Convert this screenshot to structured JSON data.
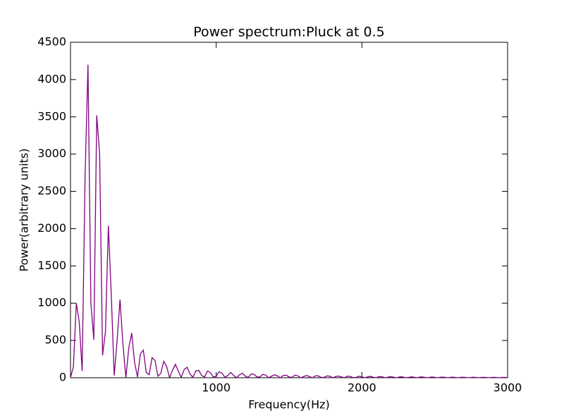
{
  "chart_data": {
    "type": "line",
    "title": "Power spectrum:Pluck at 0.5",
    "x_label": "Frequency(Hz)",
    "y_label": "Power(arbitrary units)",
    "x": [
      0,
      20,
      40,
      60,
      80,
      100,
      120,
      140,
      160,
      180,
      200,
      220,
      240,
      260,
      280,
      300,
      320,
      340,
      360,
      380,
      400,
      420,
      440,
      460,
      480,
      500,
      520,
      540,
      560,
      580,
      600,
      620,
      640,
      660,
      680,
      700,
      720,
      740,
      760,
      780,
      800,
      820,
      840,
      860,
      880,
      900,
      920,
      940,
      960,
      980,
      1000,
      1020,
      1040,
      1060,
      1080,
      1100,
      1120,
      1140,
      1160,
      1180,
      1200,
      1220,
      1240,
      1260,
      1280,
      1300,
      1320,
      1340,
      1360,
      1380,
      1400,
      1420,
      1440,
      1460,
      1480,
      1500,
      1520,
      1540,
      1560,
      1580,
      1600,
      1620,
      1640,
      1660,
      1680,
      1700,
      1720,
      1740,
      1760,
      1780,
      1800,
      1820,
      1840,
      1860,
      1880,
      1900,
      1920,
      1940,
      1960,
      1980,
      2000,
      2020,
      2040,
      2060,
      2080,
      2100,
      2120,
      2140,
      2160,
      2180,
      2200,
      2220,
      2240,
      2260,
      2280,
      2300,
      2320,
      2340,
      2360,
      2380,
      2400,
      2420,
      2440,
      2460,
      2480,
      2500,
      2520,
      2540,
      2560,
      2580,
      2600,
      2620,
      2640,
      2660,
      2680,
      2700,
      2720,
      2740,
      2760,
      2780,
      2800,
      2820,
      2840,
      2860,
      2880,
      2900,
      2920,
      2940,
      2960,
      2980,
      3000
    ],
    "series": [
      {
        "color": "#800080",
        "values": [
          0,
          150,
          1000,
          750,
          90,
          2700,
          4200,
          1000,
          510,
          3520,
          3000,
          300,
          620,
          2040,
          1100,
          30,
          500,
          1050,
          450,
          0,
          400,
          600,
          200,
          10,
          320,
          370,
          70,
          40,
          270,
          230,
          20,
          60,
          220,
          150,
          0,
          100,
          180,
          90,
          5,
          110,
          140,
          50,
          5,
          90,
          100,
          30,
          10,
          90,
          70,
          10,
          20,
          80,
          60,
          5,
          30,
          70,
          30,
          0,
          40,
          60,
          20,
          5,
          50,
          45,
          10,
          10,
          45,
          35,
          0,
          20,
          40,
          25,
          0,
          30,
          35,
          10,
          5,
          35,
          25,
          0,
          15,
          30,
          15,
          0,
          25,
          25,
          5,
          5,
          25,
          20,
          0,
          15,
          22,
          10,
          0,
          20,
          18,
          2,
          5,
          20,
          12,
          0,
          12,
          18,
          5,
          2,
          16,
          12,
          0,
          8,
          15,
          6,
          0,
          12,
          10,
          1,
          5,
          12,
          6,
          0,
          10,
          9,
          2,
          3,
          10,
          6,
          0,
          7,
          8,
          2,
          2,
          8,
          5,
          0,
          6,
          7,
          2,
          1,
          7,
          5,
          0,
          5,
          6,
          2,
          1,
          6,
          4,
          0,
          4,
          5,
          2
        ]
      }
    ],
    "xlim": [
      0,
      3000
    ],
    "xticks": [
      1000,
      2000,
      3000
    ],
    "ylim": [
      0,
      4500
    ],
    "yticks": [
      0,
      500,
      1000,
      1500,
      2000,
      2500,
      3000,
      3500,
      4000,
      4500
    ]
  }
}
